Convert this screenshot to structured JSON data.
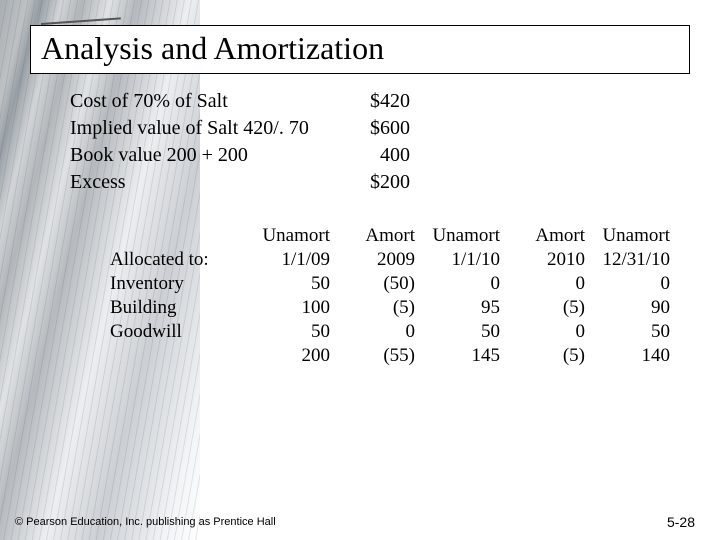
{
  "title": "Analysis and Amortization",
  "top_rows": [
    {
      "label": "Cost of 70% of Salt",
      "value": "$420"
    },
    {
      "label": "Implied value of Salt 420/. 70",
      "value": "$600"
    },
    {
      "label": "Book value 200 + 200",
      "value": "400"
    },
    {
      "label": "Excess",
      "value": "$200"
    }
  ],
  "alloc": {
    "headers": {
      "c0": "",
      "c1": "Unamort",
      "c2": "Amort",
      "c3": "Unamort",
      "c4": "Amort",
      "c5": "Unamort"
    },
    "subheaders": {
      "c0": "Allocated to:",
      "c1": "1/1/09",
      "c2": "2009",
      "c3": "1/1/10",
      "c4": "2010",
      "c5": "12/31/10"
    },
    "rows": [
      {
        "c0": "Inventory",
        "c1": "50",
        "c2": "(50)",
        "c3": "0",
        "c4": "0",
        "c5": "0"
      },
      {
        "c0": "Building",
        "c1": "100",
        "c2": "(5)",
        "c3": "95",
        "c4": "(5)",
        "c5": "90"
      },
      {
        "c0": "Goodwill",
        "c1": "50",
        "c2": "0",
        "c3": "50",
        "c4": "0",
        "c5": "50"
      },
      {
        "c0": "",
        "c1": "200",
        "c2": "(55)",
        "c3": "145",
        "c4": "(5)",
        "c5": "140"
      }
    ]
  },
  "footer": {
    "copyright": "© Pearson Education, Inc. publishing as Prentice Hall",
    "pagenum": "5-28"
  }
}
